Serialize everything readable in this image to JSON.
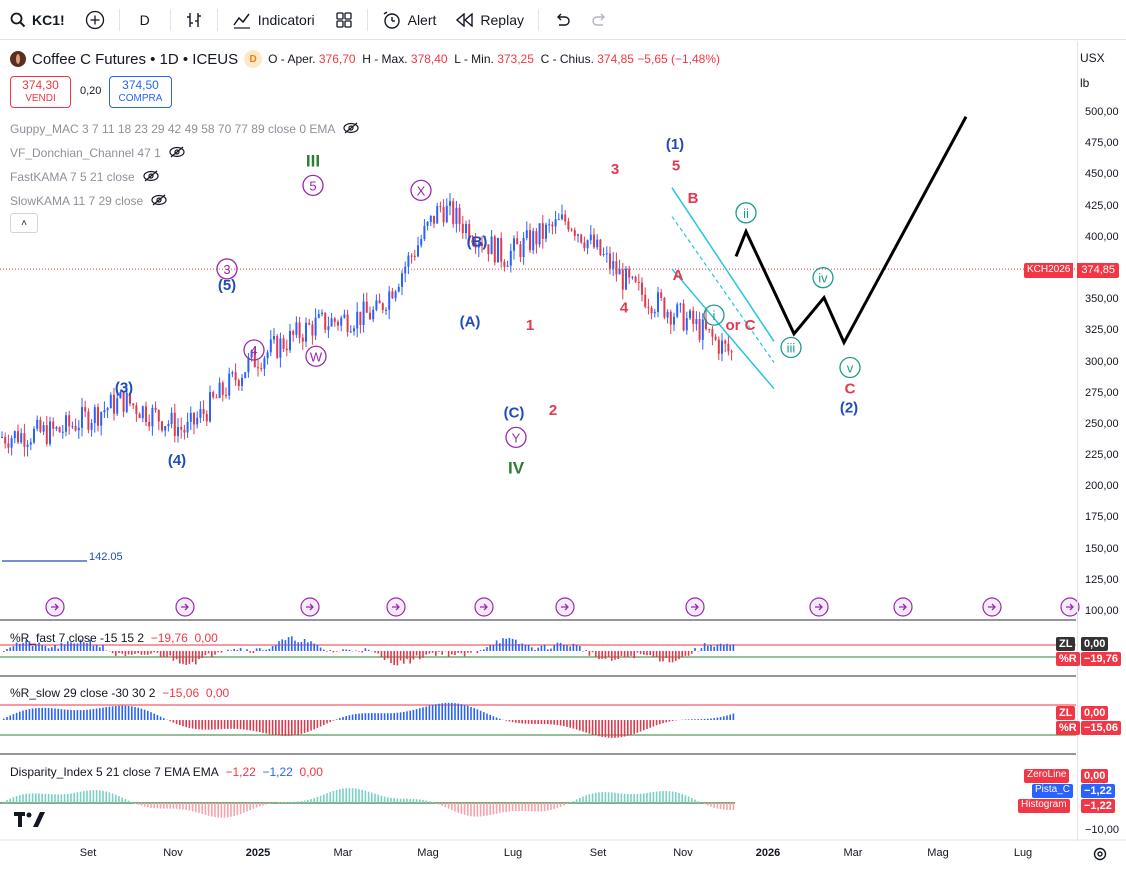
{
  "toolbar": {
    "symbol": "KC1!",
    "interval": "D",
    "indicators_label": "Indicatori",
    "alert_label": "Alert",
    "replay_label": "Replay"
  },
  "legend": {
    "title": "Coffee C Futures • 1D • ICEUS",
    "flag": "D",
    "open_label": "O - Aper.",
    "open": "376,70",
    "high_label": "H - Max.",
    "high": "378,40",
    "low_label": "L - Min.",
    "low": "373,25",
    "close_label": "C - Chius.",
    "close": "374,85",
    "change": "−5,65 (−1,48%)"
  },
  "trade": {
    "sell_price": "374,30",
    "sell_label": "VENDI",
    "spread": "0,20",
    "buy_price": "374,50",
    "buy_label": "COMPRA"
  },
  "indicators_list": [
    "Guppy_MAC 3 7 11 18 23 29 42 49 58 70 77 89 close 0 EMA",
    "VF_Donchian_Channel 47 1",
    "FastKAMA 7 5 21 close",
    "SlowKAMA 11 7 29 close"
  ],
  "axis": {
    "currency": "USX",
    "unit": "lb",
    "price_ticks": [
      "500,00",
      "475,00",
      "450,00",
      "425,00",
      "400,00",
      "375,00",
      "350,00",
      "325,00",
      "300,00",
      "275,00",
      "250,00",
      "225,00",
      "200,00",
      "175,00",
      "150,00",
      "125,00",
      "100,00"
    ],
    "last_symbol": "KCH2026",
    "last_price": "374,85",
    "x_ticks": [
      "Set",
      "Nov",
      "2025",
      "Mar",
      "Mag",
      "Lug",
      "Set",
      "Nov",
      "2026",
      "Mar",
      "Mag",
      "Lug"
    ],
    "hline_label": "142.05"
  },
  "colors": {
    "up": "#2962ff",
    "down": "#e03a4e",
    "wave_green": "#2e7d32",
    "wave_purple": "#9c27b0",
    "wave_blue": "#1e4db7",
    "wave_red": "#e03a4e",
    "teal": "#1a9c8c",
    "channel": "#26c6da"
  },
  "panes": {
    "r_fast": {
      "title": "%R_fast 7 close -15 15 2",
      "v1": "−19,76",
      "v2": "0,00",
      "zl_label": "ZL",
      "zl_value": "0,00",
      "r_label": "%R",
      "r_value": "−19,76"
    },
    "r_slow": {
      "title": "%R_slow 29 close -30 30 2",
      "v1": "−15,06",
      "v2": "0,00",
      "zl_label": "ZL",
      "zl_value": "0,00",
      "r_label": "%R",
      "r_value": "−15,06"
    },
    "disparity": {
      "title": "Disparity_Index 5 21 close 7 EMA EMA",
      "v1": "−1,22",
      "v2": "−1,22",
      "v3": "0,00",
      "zero_label": "ZeroLine",
      "zero_value": "0,00",
      "pista_label": "Pista_C",
      "pista_value": "−1,22",
      "hist_label": "Histogram",
      "hist_value": "−1,22",
      "tick": "−10,00"
    }
  },
  "chart_data": {
    "type": "candlestick",
    "title": "Coffee C Futures • 1D • ICEUS",
    "ylim": [
      100,
      500
    ],
    "price_series": [
      {
        "month": "2024-07",
        "price": 240
      },
      {
        "month": "2024-08",
        "price": 245
      },
      {
        "month": "2024-09",
        "price": 270
      },
      {
        "month": "2024-10",
        "price": 245
      },
      {
        "month": "2024-11",
        "price": 300
      },
      {
        "month": "2024-12",
        "price": 330
      },
      {
        "month": "2025-01",
        "price": 340
      },
      {
        "month": "2025-02",
        "price": 425
      },
      {
        "month": "2025-03",
        "price": 385
      },
      {
        "month": "2025-04",
        "price": 415
      },
      {
        "month": "2025-05",
        "price": 360
      },
      {
        "month": "2025-06",
        "price": 330
      },
      {
        "month": "2025-07",
        "price": 290
      },
      {
        "month": "2025-08",
        "price": 310
      },
      {
        "month": "2025-09",
        "price": 400
      },
      {
        "month": "2025-10",
        "price": 390
      },
      {
        "month": "2025-11",
        "price": 395
      },
      {
        "month": "2025-12",
        "price": 374.85
      }
    ],
    "projection": [
      {
        "month": "2025-12",
        "price": 385
      },
      {
        "month": "2025-12",
        "price": 405
      },
      {
        "month": "2026-01",
        "price": 323
      },
      {
        "month": "2026-02",
        "price": 352
      },
      {
        "month": "2026-03",
        "price": 316
      },
      {
        "month": "2026-05",
        "price": 497
      }
    ],
    "wave_labels": [
      {
        "text": "(3)",
        "month": "2024-09",
        "price": 280,
        "color": "blue"
      },
      {
        "text": "(4)",
        "month": "2024-11",
        "price": 222,
        "color": "blue"
      },
      {
        "text": "(5)",
        "month": "2025-01",
        "price": 362,
        "color": "blue"
      },
      {
        "text": "3",
        "month": "2025-01",
        "price": 375,
        "color": "purple_circle"
      },
      {
        "text": "4",
        "month": "2025-01",
        "price": 310,
        "color": "purple_circle"
      },
      {
        "text": "5",
        "month": "2025-02",
        "price": 442,
        "color": "purple_circle"
      },
      {
        "text": "W",
        "month": "2025-02",
        "price": 305,
        "color": "purple_circle"
      },
      {
        "text": "III",
        "month": "2025-02",
        "price": 462,
        "color": "green"
      },
      {
        "text": "X",
        "month": "2025-04",
        "price": 438,
        "color": "purple_circle"
      },
      {
        "text": "(A)",
        "month": "2025-05",
        "price": 333,
        "color": "blue"
      },
      {
        "text": "(B)",
        "month": "2025-06",
        "price": 397,
        "color": "blue"
      },
      {
        "text": "(C)",
        "month": "2025-07",
        "price": 260,
        "color": "blue"
      },
      {
        "text": "Y",
        "month": "2025-07",
        "price": 240,
        "color": "purple_circle"
      },
      {
        "text": "IV",
        "month": "2025-07",
        "price": 216,
        "color": "green"
      },
      {
        "text": "1",
        "month": "2025-08",
        "price": 330,
        "color": "red"
      },
      {
        "text": "2",
        "month": "2025-08",
        "price": 262,
        "color": "red"
      },
      {
        "text": "3",
        "month": "2025-09",
        "price": 455,
        "color": "red"
      },
      {
        "text": "4",
        "month": "2025-10",
        "price": 344,
        "color": "red"
      },
      {
        "text": "(1)",
        "month": "2025-11",
        "price": 475,
        "color": "blue"
      },
      {
        "text": "5",
        "month": "2025-11",
        "price": 458,
        "color": "red"
      },
      {
        "text": "A",
        "month": "2025-11",
        "price": 370,
        "color": "red"
      },
      {
        "text": "B",
        "month": "2025-11",
        "price": 432,
        "color": "red"
      },
      {
        "text": "i",
        "month": "2025-11",
        "price": 338,
        "color": "teal_circle"
      },
      {
        "text": "ii",
        "month": "2025-12",
        "price": 420,
        "color": "teal_circle"
      },
      {
        "text": "or",
        "month": "2025-12",
        "price": 330,
        "color": "red"
      },
      {
        "text": "C",
        "month": "2025-12",
        "price": 330,
        "color": "red"
      },
      {
        "text": "iii",
        "month": "2026-01",
        "price": 312,
        "color": "teal_circle"
      },
      {
        "text": "iv",
        "month": "2026-02",
        "price": 368,
        "color": "teal_circle"
      },
      {
        "text": "v",
        "month": "2026-03",
        "price": 296,
        "color": "teal_circle"
      },
      {
        "text": "C",
        "month": "2026-03",
        "price": 279,
        "color": "red"
      },
      {
        "text": "(2)",
        "month": "2026-03",
        "price": 264,
        "color": "blue"
      }
    ]
  }
}
